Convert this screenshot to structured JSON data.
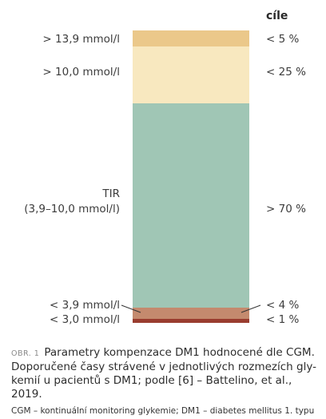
{
  "heading": "cíle",
  "rows": [
    {
      "left": "> 13,9 mmol/l",
      "target": "< 5 %",
      "color": "#ebc88a"
    },
    {
      "left": "> 10,0 mmol/l",
      "target": "< 25 %",
      "color": "#f8e8bf"
    },
    {
      "left_line1": "TIR",
      "left_line2": "(3,9–10,0 mmol/l)",
      "target": "> 70 %",
      "color": "#a0c6b5"
    },
    {
      "left": "< 3,9 mmol/l",
      "target": "< 4 %",
      "color": "#c48a6e"
    },
    {
      "left": "< 3,0 mmol/l",
      "target": "< 1 %",
      "color": "#9a3d2f"
    }
  ],
  "caption": {
    "prefix": "OBR. 1",
    "line1": "Parametry kompenzace DM1 hodnocené dle CGM.",
    "line2": "Doporučené časy strávené v jednotlivých rozmezích gly-",
    "line3": "kemií u pacientů s DM1; podle [6] – Battelino, et al., 2019.",
    "footnote": "CGM – kontinuální monitoring glykemie; DM1 – diabetes mellitus 1. typu"
  }
}
